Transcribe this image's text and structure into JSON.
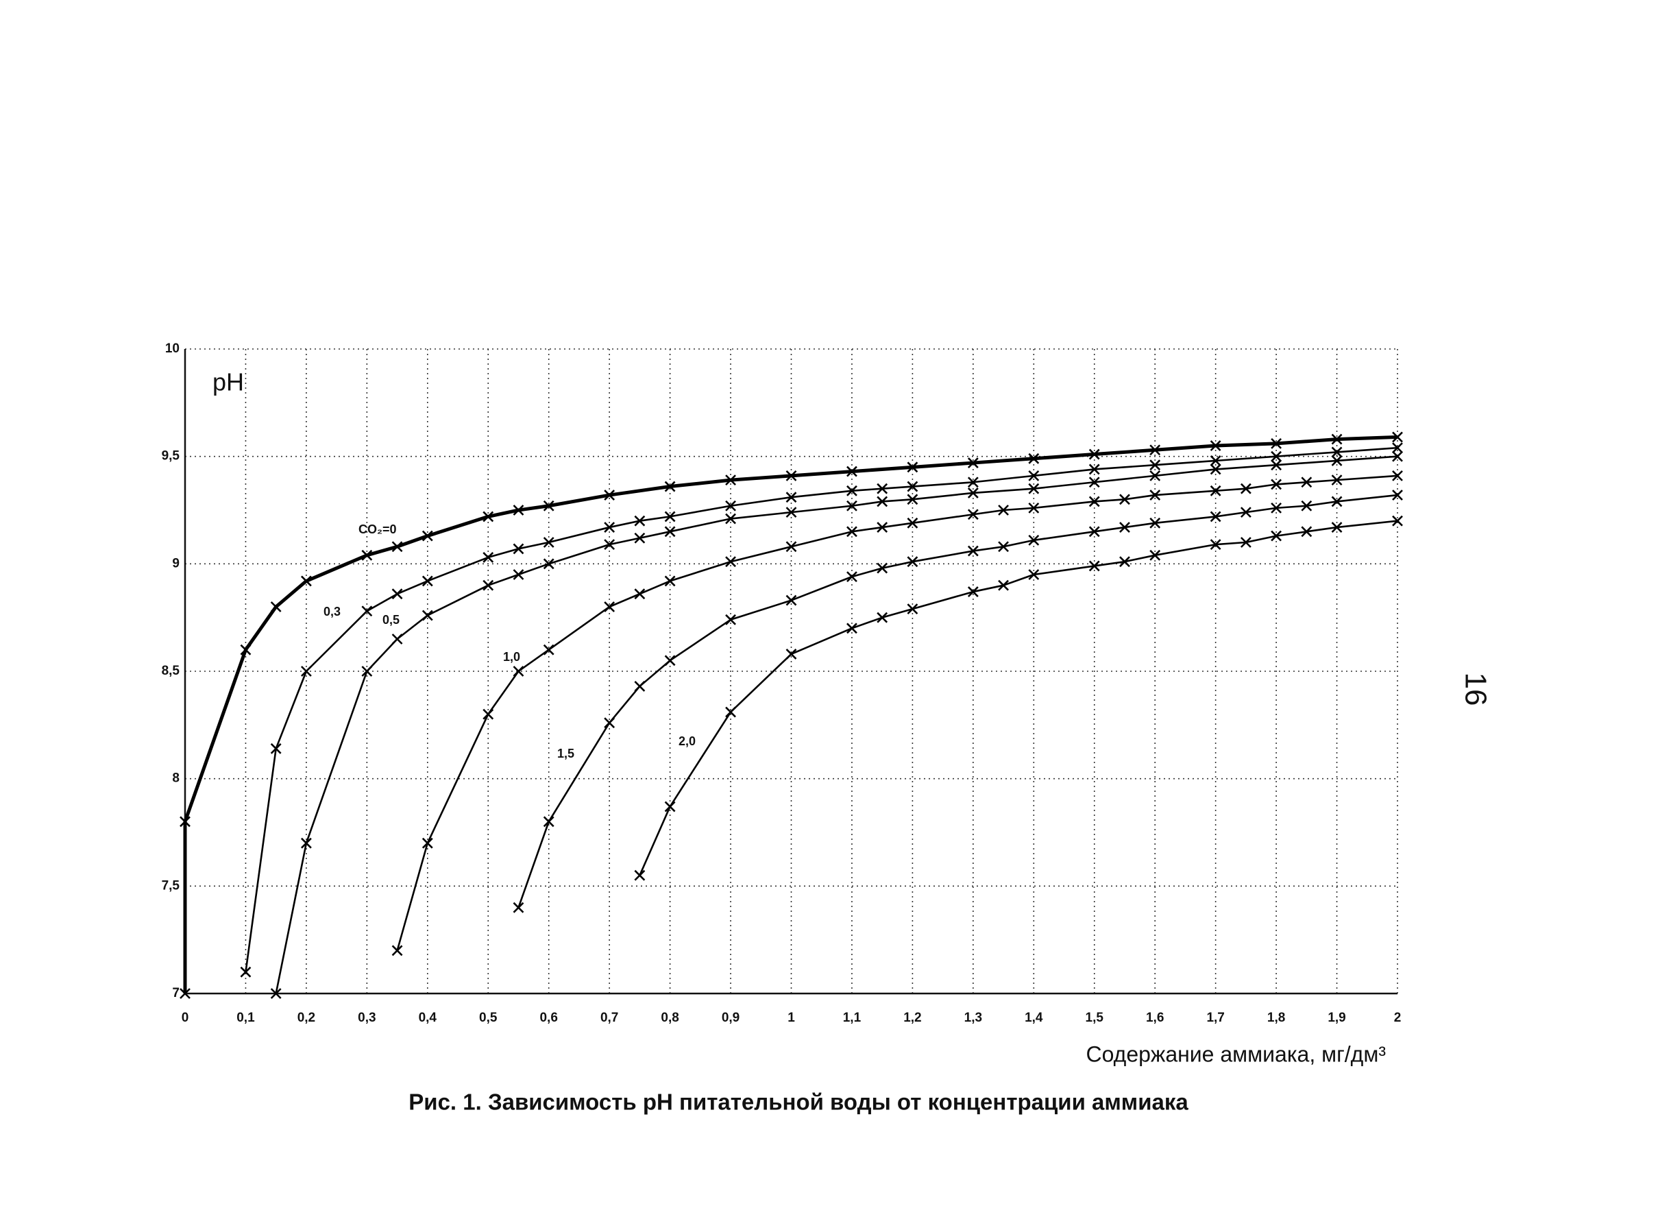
{
  "page": {
    "number": "16"
  },
  "chart_data": {
    "type": "line",
    "y_label": "pH",
    "x_label": "Содержание аммиака, мг/дм³",
    "caption": "Рис. 1. Зависимость pH питательной воды от концентрации аммиака",
    "xlim": [
      0,
      2
    ],
    "ylim": [
      7,
      10
    ],
    "grid": true,
    "xticks": [
      0,
      {
        "value": 0.1,
        "label": "0,1"
      },
      {
        "value": 0.2,
        "label": "0,2"
      },
      {
        "value": 0.3,
        "label": "0,3"
      },
      {
        "value": 0.4,
        "label": "0,4"
      },
      {
        "value": 0.5,
        "label": "0,5"
      },
      {
        "value": 0.6,
        "label": "0,6"
      },
      {
        "value": 0.7,
        "label": "0,7"
      },
      {
        "value": 0.8,
        "label": "0,8"
      },
      {
        "value": 0.9,
        "label": "0,9"
      },
      1,
      {
        "value": 1.1,
        "label": "1,1"
      },
      {
        "value": 1.2,
        "label": "1,2"
      },
      {
        "value": 1.3,
        "label": "1,3"
      },
      {
        "value": 1.4,
        "label": "1,4"
      },
      {
        "value": 1.5,
        "label": "1,5"
      },
      {
        "value": 1.6,
        "label": "1,6"
      },
      {
        "value": 1.7,
        "label": "1,7"
      },
      {
        "value": 1.8,
        "label": "1,8"
      },
      {
        "value": 1.9,
        "label": "1,9"
      },
      2
    ],
    "yticks": [
      7,
      {
        "value": 7.5,
        "label": "7,5"
      },
      8,
      {
        "value": 8.5,
        "label": "8,5"
      },
      9,
      {
        "value": 9.5,
        "label": "9,5"
      },
      10
    ],
    "series": [
      {
        "name": "CO₂=0",
        "color": "#000000",
        "x": [
          0,
          0,
          0.1,
          0.15,
          0.2,
          0.3,
          0.35,
          0.4,
          0.5,
          0.55,
          0.6,
          0.7,
          0.8,
          0.9,
          1.0,
          1.1,
          1.2,
          1.3,
          1.4,
          1.5,
          1.6,
          1.7,
          1.8,
          1.9,
          2.0
        ],
        "values": [
          7.0,
          7.8,
          8.6,
          8.8,
          8.92,
          9.04,
          9.08,
          9.13,
          9.22,
          9.25,
          9.27,
          9.32,
          9.36,
          9.39,
          9.41,
          9.43,
          9.45,
          9.47,
          9.49,
          9.51,
          9.53,
          9.55,
          9.56,
          9.58,
          9.59
        ]
      },
      {
        "name": "0,3",
        "color": "#000000",
        "x": [
          0.1,
          0.15,
          0.2,
          0.3,
          0.35,
          0.4,
          0.5,
          0.55,
          0.6,
          0.7,
          0.75,
          0.8,
          0.9,
          1.0,
          1.1,
          1.15,
          1.2,
          1.3,
          1.4,
          1.5,
          1.6,
          1.7,
          1.8,
          1.9,
          2.0
        ],
        "values": [
          7.1,
          8.14,
          8.5,
          8.78,
          8.86,
          8.92,
          9.03,
          9.07,
          9.1,
          9.17,
          9.2,
          9.22,
          9.27,
          9.31,
          9.34,
          9.35,
          9.36,
          9.38,
          9.41,
          9.44,
          9.46,
          9.48,
          9.5,
          9.52,
          9.54
        ]
      },
      {
        "name": "0,5",
        "color": "#000000",
        "x": [
          0.15,
          0.2,
          0.3,
          0.35,
          0.4,
          0.5,
          0.55,
          0.6,
          0.7,
          0.75,
          0.8,
          0.9,
          1.0,
          1.1,
          1.15,
          1.2,
          1.3,
          1.4,
          1.5,
          1.6,
          1.7,
          1.8,
          1.9,
          2.0
        ],
        "values": [
          7.0,
          7.7,
          8.5,
          8.65,
          8.76,
          8.9,
          8.95,
          9.0,
          9.09,
          9.12,
          9.15,
          9.21,
          9.24,
          9.27,
          9.29,
          9.3,
          9.33,
          9.35,
          9.38,
          9.41,
          9.44,
          9.46,
          9.48,
          9.5
        ]
      },
      {
        "name": "1,0",
        "color": "#000000",
        "x": [
          0.35,
          0.4,
          0.5,
          0.55,
          0.6,
          0.7,
          0.75,
          0.8,
          0.9,
          1.0,
          1.1,
          1.15,
          1.2,
          1.3,
          1.35,
          1.4,
          1.5,
          1.55,
          1.6,
          1.7,
          1.75,
          1.8,
          1.85,
          1.9,
          2.0
        ],
        "values": [
          7.2,
          7.7,
          8.3,
          8.5,
          8.6,
          8.8,
          8.86,
          8.92,
          9.01,
          9.08,
          9.15,
          9.17,
          9.19,
          9.23,
          9.25,
          9.26,
          9.29,
          9.3,
          9.32,
          9.34,
          9.35,
          9.37,
          9.38,
          9.39,
          9.41
        ]
      },
      {
        "name": "1,5",
        "color": "#000000",
        "x": [
          0.55,
          0.6,
          0.7,
          0.75,
          0.8,
          0.9,
          1.0,
          1.1,
          1.15,
          1.2,
          1.3,
          1.35,
          1.4,
          1.5,
          1.55,
          1.6,
          1.7,
          1.75,
          1.8,
          1.85,
          1.9,
          2.0
        ],
        "values": [
          7.4,
          7.8,
          8.26,
          8.43,
          8.55,
          8.74,
          8.83,
          8.94,
          8.98,
          9.01,
          9.06,
          9.08,
          9.11,
          9.15,
          9.17,
          9.19,
          9.22,
          9.24,
          9.26,
          9.27,
          9.29,
          9.32
        ]
      },
      {
        "name": "2,0",
        "color": "#000000",
        "x": [
          0.75,
          0.8,
          0.9,
          1.0,
          1.1,
          1.15,
          1.2,
          1.3,
          1.35,
          1.4,
          1.5,
          1.55,
          1.6,
          1.7,
          1.75,
          1.8,
          1.85,
          1.9,
          2.0
        ],
        "values": [
          7.55,
          7.87,
          8.31,
          8.58,
          8.7,
          8.75,
          8.79,
          8.87,
          8.9,
          8.95,
          8.99,
          9.01,
          9.04,
          9.09,
          9.1,
          9.13,
          9.15,
          9.17,
          9.2
        ]
      }
    ]
  }
}
